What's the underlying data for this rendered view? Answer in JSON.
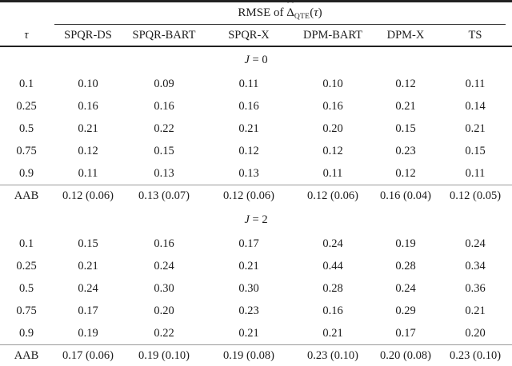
{
  "table": {
    "spanner": {
      "prefix": "RMSE of ",
      "delta": "Δ",
      "hat": "ˆ",
      "subscript": "QTE",
      "open": "(",
      "tau": "τ",
      "close": ")"
    },
    "columns": [
      "τ",
      "SPQR-DS",
      "SPQR-BART",
      "SPQR-X",
      "DPM-BART",
      "DPM-X",
      "TS"
    ],
    "sections": [
      {
        "label_var": "J",
        "label_rest": "= 0",
        "rows": [
          {
            "tau": "0.1",
            "values": [
              "0.10",
              "0.09",
              "0.11",
              "0.10",
              "0.12",
              "0.11"
            ]
          },
          {
            "tau": "0.25",
            "values": [
              "0.16",
              "0.16",
              "0.16",
              "0.16",
              "0.21",
              "0.14"
            ]
          },
          {
            "tau": "0.5",
            "values": [
              "0.21",
              "0.22",
              "0.21",
              "0.20",
              "0.15",
              "0.21"
            ]
          },
          {
            "tau": "0.75",
            "values": [
              "0.12",
              "0.15",
              "0.12",
              "0.12",
              "0.23",
              "0.15"
            ]
          },
          {
            "tau": "0.9",
            "values": [
              "0.11",
              "0.13",
              "0.13",
              "0.11",
              "0.12",
              "0.11"
            ]
          }
        ],
        "summary": {
          "label": "AAB",
          "values": [
            "0.12 (0.06)",
            "0.13 (0.07)",
            "0.12 (0.06)",
            "0.12 (0.06)",
            "0.16 (0.04)",
            "0.12 (0.05)"
          ],
          "bold": [
            true,
            false,
            true,
            true,
            false,
            true
          ]
        }
      },
      {
        "label_var": "J",
        "label_rest": "= 2",
        "rows": [
          {
            "tau": "0.1",
            "values": [
              "0.15",
              "0.16",
              "0.17",
              "0.24",
              "0.19",
              "0.24"
            ]
          },
          {
            "tau": "0.25",
            "values": [
              "0.21",
              "0.24",
              "0.21",
              "0.44",
              "0.28",
              "0.34"
            ]
          },
          {
            "tau": "0.5",
            "values": [
              "0.24",
              "0.30",
              "0.30",
              "0.28",
              "0.24",
              "0.36"
            ]
          },
          {
            "tau": "0.75",
            "values": [
              "0.17",
              "0.20",
              "0.23",
              "0.16",
              "0.29",
              "0.21"
            ]
          },
          {
            "tau": "0.9",
            "values": [
              "0.19",
              "0.22",
              "0.21",
              "0.21",
              "0.17",
              "0.20"
            ]
          }
        ],
        "summary": {
          "label": "AAB",
          "values": [
            "0.17 (0.06)",
            "0.19 (0.10)",
            "0.19 (0.08)",
            "0.23 (0.10)",
            "0.20 (0.08)",
            "0.23 (0.10)"
          ],
          "bold": [
            true,
            false,
            false,
            false,
            false,
            false
          ]
        }
      }
    ]
  }
}
